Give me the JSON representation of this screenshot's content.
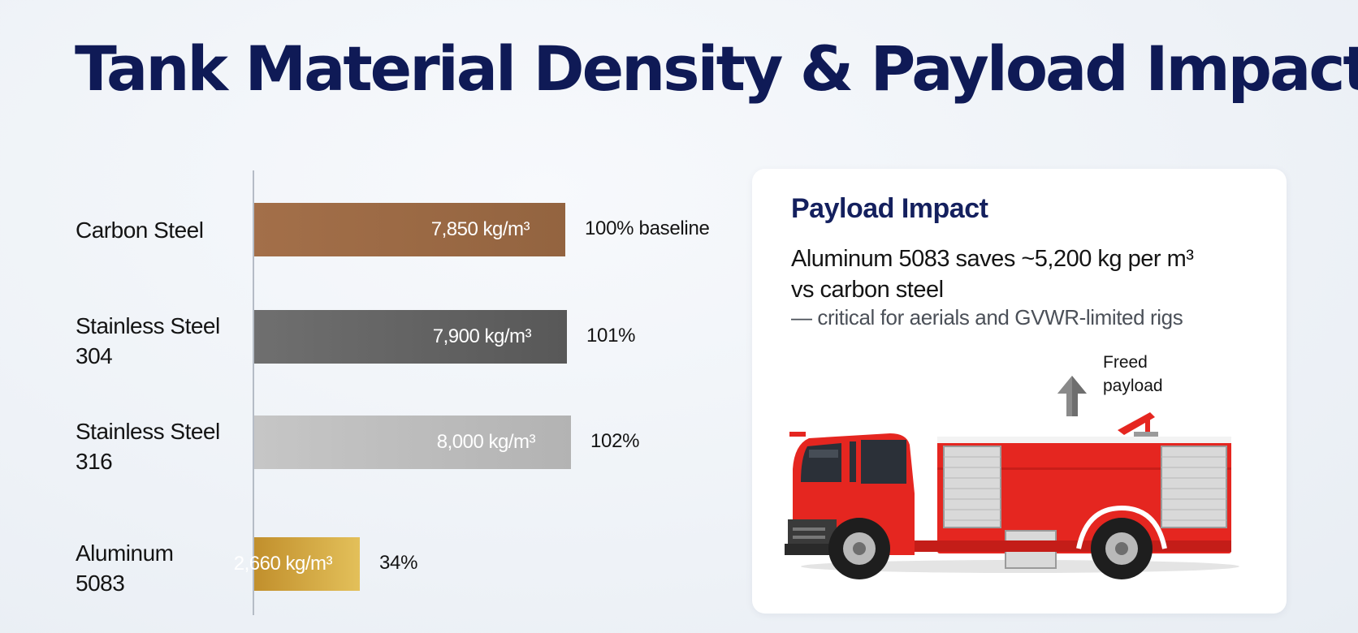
{
  "page": {
    "title": "Tank Material Density & Payload Impact"
  },
  "chart_data": {
    "type": "bar",
    "orientation": "horizontal",
    "title": "Tank Material Density & Payload Impact",
    "categories": [
      "Carbon Steel",
      "Stainless Steel 304",
      "Stainless Steel 316",
      "Aluminum 5083"
    ],
    "category_lines": [
      [
        "Carbon Steel"
      ],
      [
        "Stainless Steel",
        "304"
      ],
      [
        "Stainless Steel",
        "316"
      ],
      [
        "Aluminum",
        "5083"
      ]
    ],
    "values": [
      7850,
      7900,
      8000,
      2660
    ],
    "value_labels": [
      "7,850 kg/m³",
      "7,900 kg/m³",
      "8,000 kg/m³",
      "2,660 kg/m³"
    ],
    "percent_labels": [
      "100% baseline",
      "101%",
      "102%",
      "34%"
    ],
    "unit": "kg/m³",
    "xlim": [
      0,
      8200
    ],
    "grid": false,
    "legend": "none",
    "bar_colors": [
      "#9c6b47",
      "#626262",
      "#bdbdbd",
      "#d2a43a"
    ]
  },
  "card": {
    "title": "Payload Impact",
    "body_lines": [
      "Aluminum 5083 saves ~5,200 kg per m³",
      "vs carbon steel"
    ],
    "subtext": "— critical for aerials and GVWR-limited rigs",
    "freed_label_lines": [
      "Freed",
      "payload"
    ],
    "icons": [
      "up-arrow-icon",
      "fire-truck-illustration"
    ],
    "colors": {
      "title": "#14205e",
      "truck_body": "#e52620",
      "arrow": "#6b6b6b"
    }
  }
}
